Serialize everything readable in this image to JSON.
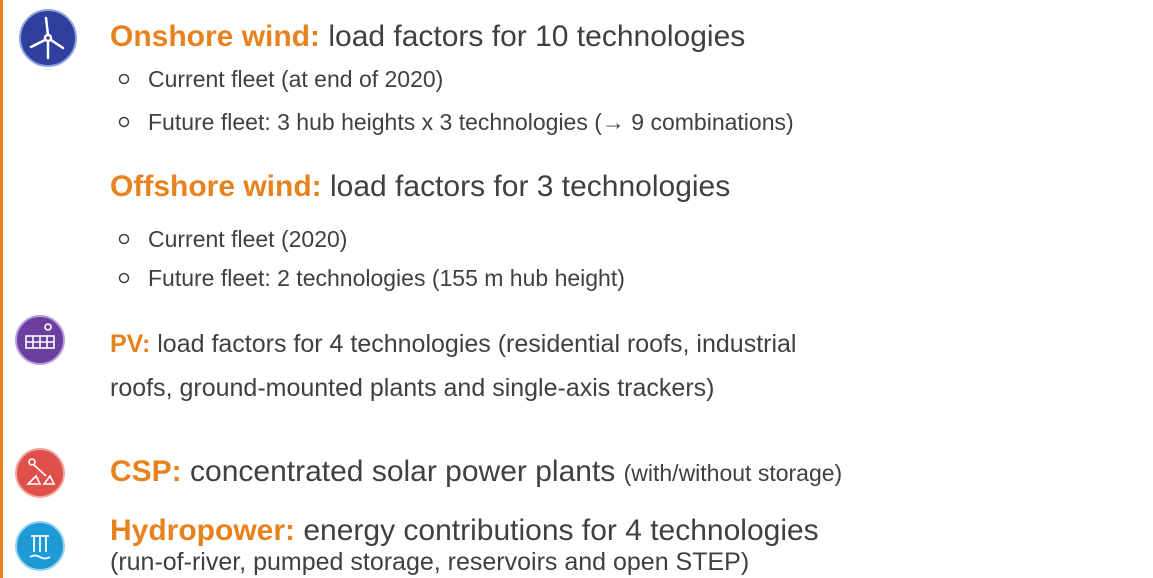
{
  "items": [
    {
      "heading": "Onshore wind:",
      "text": "load factors for 10 technologies",
      "bullets": [
        "Current fleet (at end of 2020)",
        "Future fleet: 3 hub heights  x  3 technologies (→ 9 combinations)"
      ]
    },
    {
      "heading": "Offshore wind:",
      "text": "load factors for 3 technologies",
      "bullets": [
        "Current fleet (2020)",
        "Future fleet: 2 technologies (155 m hub height)"
      ]
    },
    {
      "heading": "PV:",
      "text": "load factors for 4 technologies (residential roofs, industrial",
      "continuation": "roofs, ground-mounted plants and single-axis trackers)"
    },
    {
      "heading": "CSP:",
      "text": "concentrated solar power plants",
      "note": "(with/without storage)"
    },
    {
      "heading": "Hydropower:",
      "text": "energy contributions for 4 technologies",
      "continuation": "(run-of-river, pumped storage, reservoirs and open STEP)"
    }
  ]
}
